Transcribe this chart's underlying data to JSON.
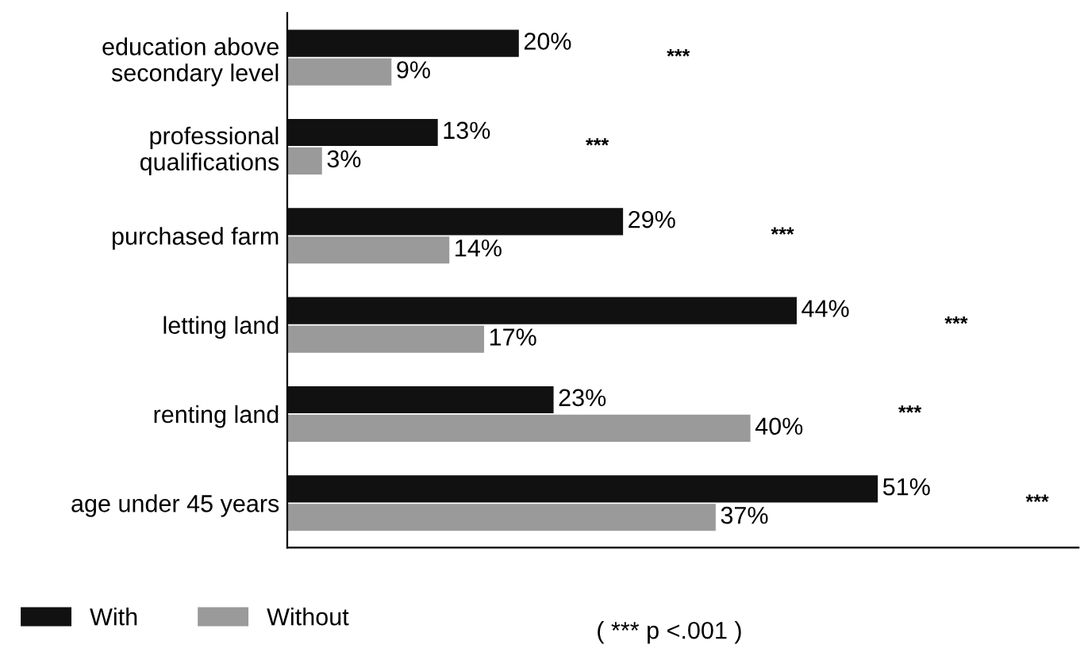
{
  "chart_data": {
    "type": "bar",
    "orientation": "horizontal",
    "categories": [
      "education above\nsecondary level",
      "professional\nqualifications",
      "purchased farm",
      "letting land",
      "renting land",
      "age under 45 years"
    ],
    "series": [
      {
        "name": "With",
        "color": "#111111",
        "values": [
          20,
          13,
          29,
          44,
          23,
          51
        ],
        "value_labels": [
          "20%",
          "13%",
          "29%",
          "44%",
          "23%",
          "51%"
        ]
      },
      {
        "name": "Without",
        "color": "#9a9a9a",
        "values": [
          9,
          3,
          14,
          17,
          40,
          37
        ],
        "value_labels": [
          "9%",
          "3%",
          "14%",
          "17%",
          "40%",
          "37%"
        ]
      }
    ],
    "annotations": [
      "***",
      "***",
      "***",
      "***",
      "***",
      "***",
      "( *** p <.001 )"
    ],
    "legend": "bottom",
    "grid": false
  }
}
